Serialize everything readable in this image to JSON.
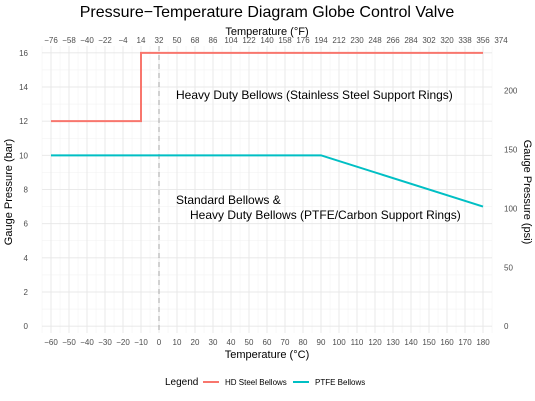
{
  "chart_data": {
    "type": "line",
    "title": "Pressure−Temperature Diagram Globe Control Valve",
    "xlabel": "Temperature (°C)",
    "ylabel": "Gauge Pressure (bar)",
    "x2label": "Temperature (°F)",
    "y2label": "Gauge Pressure (psi)",
    "xlim": [
      -65,
      185
    ],
    "ylim": [
      -0.4,
      16.4
    ],
    "x_ticks": [
      "−60",
      "−50",
      "−40",
      "−30",
      "−20",
      "−10",
      "0",
      "10",
      "20",
      "30",
      "40",
      "50",
      "60",
      "70",
      "80",
      "90",
      "100",
      "110",
      "120",
      "130",
      "140",
      "150",
      "160",
      "170",
      "180"
    ],
    "y_ticks": [
      "0",
      "2",
      "4",
      "6",
      "8",
      "10",
      "12",
      "14",
      "16"
    ],
    "x2_ticks": [
      "−76",
      "−58",
      "−40",
      "−22",
      "−4",
      "14",
      "32",
      "50",
      "68",
      "86",
      "104",
      "122",
      "140",
      "158",
      "176",
      "194",
      "212",
      "230",
      "248",
      "266",
      "284",
      "302",
      "320",
      "338",
      "356",
      "374"
    ],
    "y2_ticks": [
      "0",
      "50",
      "100",
      "150",
      "200"
    ],
    "vline_x": 0,
    "vline_label": "32",
    "series": [
      {
        "name": "HD Steel Bellows",
        "color": "#F8766D",
        "points": [
          [
            -60,
            12
          ],
          [
            -10,
            12
          ],
          [
            -10,
            16
          ],
          [
            180,
            16
          ]
        ]
      },
      {
        "name": "PTFE Bellows",
        "color": "#00BFC4",
        "points": [
          [
            -60,
            10
          ],
          [
            90,
            10
          ],
          [
            180,
            7
          ]
        ]
      }
    ],
    "annotations": [
      "Heavy Duty Bellows (Stainless Steel Support Rings)",
      "Standard Bellows &",
      "Heavy Duty Bellows (PTFE/Carbon Support Rings)"
    ],
    "grid": true,
    "legend": {
      "title": "Legend",
      "position": "bottom"
    }
  }
}
